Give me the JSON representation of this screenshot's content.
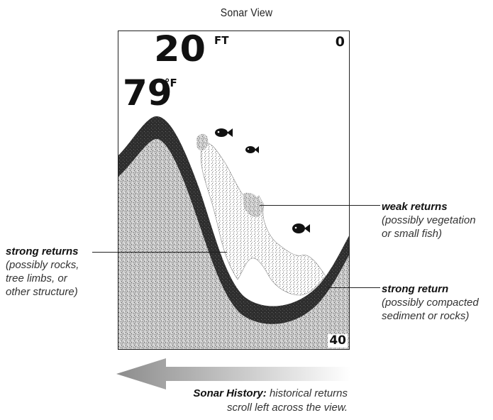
{
  "title": "Sonar View",
  "display": {
    "depth_value": "20",
    "depth_unit": "FT",
    "temp_value": "79",
    "temp_unit": "°F",
    "range_top": "0",
    "range_bottom": "40"
  },
  "callouts": {
    "weak": {
      "head": "weak returns",
      "lines": [
        "(possibly vegetation",
        "or small fish)"
      ]
    },
    "strong_left": {
      "head": "strong returns",
      "lines": [
        "(possibly rocks,",
        "tree limbs, or",
        "other structure)"
      ]
    },
    "strong_right": {
      "head": "strong return",
      "lines": [
        "(possibly compacted",
        "sediment or rocks)"
      ]
    },
    "history": {
      "head": "Sonar History:",
      "text1": "historical returns",
      "text2": "scroll left across the view."
    }
  },
  "colors": {
    "noise": "#9a9a9a",
    "band": "#2c2c2c",
    "fish": "#111111",
    "arrow": "#8c8c8c"
  }
}
